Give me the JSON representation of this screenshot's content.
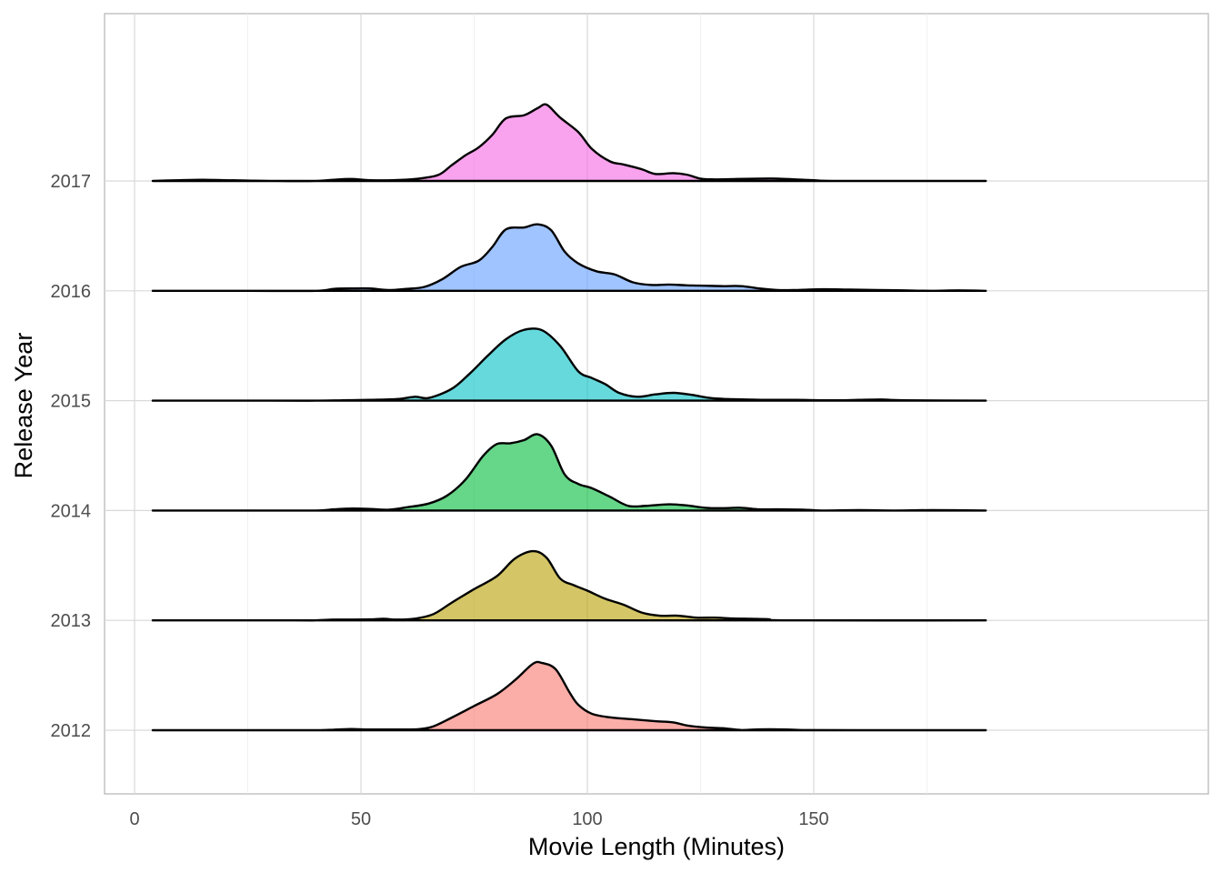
{
  "chart_data": {
    "type": "ridgeline",
    "title": "",
    "xlabel": "Movie Length (Minutes)",
    "ylabel": "Release Year",
    "xlim": [
      -5,
      192
    ],
    "x_ticks": [
      0,
      50,
      100,
      150
    ],
    "x_tick_labels": [
      "0",
      "50",
      "100",
      "150"
    ],
    "x_range": [
      4,
      188
    ],
    "grid": true,
    "legend": "none",
    "series": [
      {
        "name": "2012",
        "color": "#F8766D",
        "points": [
          [
            4,
            0
          ],
          [
            25,
            0
          ],
          [
            40,
            0
          ],
          [
            44,
            0.014
          ],
          [
            48,
            0.03
          ],
          [
            51,
            0.02
          ],
          [
            56,
            0.02
          ],
          [
            60,
            0.018
          ],
          [
            63,
            0.03
          ],
          [
            66,
            0.1
          ],
          [
            70,
            0.32
          ],
          [
            75,
            0.62
          ],
          [
            80,
            0.92
          ],
          [
            84,
            1.28
          ],
          [
            88,
            1.7
          ],
          [
            90,
            1.72
          ],
          [
            93,
            1.56
          ],
          [
            96,
            0.98
          ],
          [
            98,
            0.65
          ],
          [
            101,
            0.42
          ],
          [
            105,
            0.33
          ],
          [
            110,
            0.28
          ],
          [
            115,
            0.23
          ],
          [
            119,
            0.2
          ],
          [
            122,
            0.12
          ],
          [
            126,
            0.07
          ],
          [
            130,
            0.05
          ],
          [
            134,
            0.005
          ],
          [
            138,
            0.022
          ],
          [
            144,
            0.02
          ],
          [
            148,
            0.003
          ],
          [
            160,
            0
          ],
          [
            188,
            0
          ]
        ]
      },
      {
        "name": "2013",
        "color": "#B79F00",
        "points": [
          [
            4,
            0
          ],
          [
            35,
            0
          ],
          [
            40,
            0
          ],
          [
            44,
            0.02
          ],
          [
            48,
            0.02
          ],
          [
            52,
            0.025
          ],
          [
            55,
            0.04
          ],
          [
            58,
            0.02
          ],
          [
            62,
            0.045
          ],
          [
            66,
            0.16
          ],
          [
            70,
            0.45
          ],
          [
            75,
            0.8
          ],
          [
            80,
            1.13
          ],
          [
            84,
            1.58
          ],
          [
            88,
            1.77
          ],
          [
            91,
            1.6
          ],
          [
            94,
            1.07
          ],
          [
            97,
            0.9
          ],
          [
            100,
            0.76
          ],
          [
            104,
            0.55
          ],
          [
            108,
            0.4
          ],
          [
            112,
            0.2
          ],
          [
            116,
            0.12
          ],
          [
            120,
            0.12
          ],
          [
            124,
            0.07
          ],
          [
            128,
            0.07
          ],
          [
            132,
            0.05
          ],
          [
            136,
            0.04
          ],
          [
            140,
            0.03
          ],
          [
            145,
            0
          ],
          [
            188,
            0
          ]
        ]
      },
      {
        "name": "2014",
        "color": "#00BA38",
        "points": [
          [
            4,
            0
          ],
          [
            25,
            0
          ],
          [
            40,
            0
          ],
          [
            44,
            0.03
          ],
          [
            48,
            0.05
          ],
          [
            52,
            0.04
          ],
          [
            56,
            0.02
          ],
          [
            60,
            0.08
          ],
          [
            65,
            0.18
          ],
          [
            69,
            0.38
          ],
          [
            73,
            0.78
          ],
          [
            77,
            1.4
          ],
          [
            80,
            1.7
          ],
          [
            83,
            1.72
          ],
          [
            86,
            1.8
          ],
          [
            89,
            1.95
          ],
          [
            92,
            1.66
          ],
          [
            95,
            0.92
          ],
          [
            98,
            0.68
          ],
          [
            101,
            0.57
          ],
          [
            105,
            0.35
          ],
          [
            109,
            0.12
          ],
          [
            113,
            0.12
          ],
          [
            118,
            0.16
          ],
          [
            122,
            0.13
          ],
          [
            126,
            0.07
          ],
          [
            130,
            0.06
          ],
          [
            134,
            0.07
          ],
          [
            138,
            0.03
          ],
          [
            142,
            0.03
          ],
          [
            148,
            0.02
          ],
          [
            152,
            0
          ],
          [
            160,
            0.01
          ],
          [
            168,
            0
          ],
          [
            176,
            0.01
          ],
          [
            188,
            0
          ]
        ]
      },
      {
        "name": "2015",
        "color": "#00BFC4",
        "points": [
          [
            4,
            0
          ],
          [
            30,
            0
          ],
          [
            40,
            0
          ],
          [
            46,
            0.01
          ],
          [
            52,
            0.02
          ],
          [
            58,
            0.04
          ],
          [
            62,
            0.1
          ],
          [
            65,
            0.07
          ],
          [
            70,
            0.3
          ],
          [
            74,
            0.69
          ],
          [
            78,
            1.15
          ],
          [
            82,
            1.57
          ],
          [
            86,
            1.81
          ],
          [
            90,
            1.8
          ],
          [
            94,
            1.4
          ],
          [
            98,
            0.75
          ],
          [
            101,
            0.58
          ],
          [
            104,
            0.42
          ],
          [
            107,
            0.2
          ],
          [
            111,
            0.1
          ],
          [
            115,
            0.16
          ],
          [
            119,
            0.2
          ],
          [
            123,
            0.15
          ],
          [
            127,
            0.07
          ],
          [
            131,
            0.04
          ],
          [
            135,
            0.03
          ],
          [
            140,
            0.02
          ],
          [
            146,
            0.02
          ],
          [
            152,
            0.01
          ],
          [
            156,
            0.01
          ],
          [
            160,
            0.02
          ],
          [
            165,
            0.03
          ],
          [
            170,
            0.01
          ],
          [
            188,
            0
          ]
        ]
      },
      {
        "name": "2016",
        "color": "#619CFF",
        "points": [
          [
            4,
            0
          ],
          [
            25,
            0
          ],
          [
            40,
            0
          ],
          [
            44,
            0.05
          ],
          [
            48,
            0.06
          ],
          [
            52,
            0.06
          ],
          [
            56,
            0.02
          ],
          [
            60,
            0.05
          ],
          [
            64,
            0.1
          ],
          [
            68,
            0.3
          ],
          [
            72,
            0.61
          ],
          [
            76,
            0.77
          ],
          [
            79,
            1.12
          ],
          [
            82,
            1.57
          ],
          [
            86,
            1.62
          ],
          [
            89,
            1.7
          ],
          [
            92,
            1.55
          ],
          [
            95,
            1.0
          ],
          [
            98,
            0.7
          ],
          [
            102,
            0.5
          ],
          [
            106,
            0.42
          ],
          [
            110,
            0.22
          ],
          [
            114,
            0.15
          ],
          [
            118,
            0.16
          ],
          [
            122,
            0.14
          ],
          [
            126,
            0.13
          ],
          [
            130,
            0.12
          ],
          [
            134,
            0.12
          ],
          [
            138,
            0.06
          ],
          [
            142,
            0.02
          ],
          [
            146,
            0.02
          ],
          [
            152,
            0.04
          ],
          [
            158,
            0.03
          ],
          [
            164,
            0.02
          ],
          [
            170,
            0.01
          ],
          [
            176,
            0
          ],
          [
            182,
            0.01
          ],
          [
            188,
            0
          ]
        ]
      },
      {
        "name": "2017",
        "color": "#F564E3",
        "points": [
          [
            4,
            0
          ],
          [
            10,
            0.02
          ],
          [
            15,
            0.03
          ],
          [
            20,
            0.02
          ],
          [
            25,
            0.01
          ],
          [
            30,
            0
          ],
          [
            40,
            0
          ],
          [
            45,
            0.04
          ],
          [
            48,
            0.05
          ],
          [
            52,
            0.02
          ],
          [
            57,
            0.02
          ],
          [
            62,
            0.05
          ],
          [
            67,
            0.15
          ],
          [
            70,
            0.4
          ],
          [
            73,
            0.65
          ],
          [
            76,
            0.86
          ],
          [
            79,
            1.18
          ],
          [
            82,
            1.6
          ],
          [
            86,
            1.68
          ],
          [
            89,
            1.86
          ],
          [
            91,
            1.95
          ],
          [
            94,
            1.62
          ],
          [
            98,
            1.25
          ],
          [
            101,
            0.82
          ],
          [
            105,
            0.5
          ],
          [
            108,
            0.42
          ],
          [
            112,
            0.3
          ],
          [
            115,
            0.18
          ],
          [
            119,
            0.2
          ],
          [
            122,
            0.16
          ],
          [
            125,
            0.06
          ],
          [
            128,
            0.04
          ],
          [
            133,
            0.05
          ],
          [
            138,
            0.06
          ],
          [
            142,
            0.06
          ],
          [
            146,
            0.04
          ],
          [
            150,
            0.02
          ],
          [
            156,
            0
          ],
          [
            188,
            0
          ]
        ]
      }
    ]
  }
}
